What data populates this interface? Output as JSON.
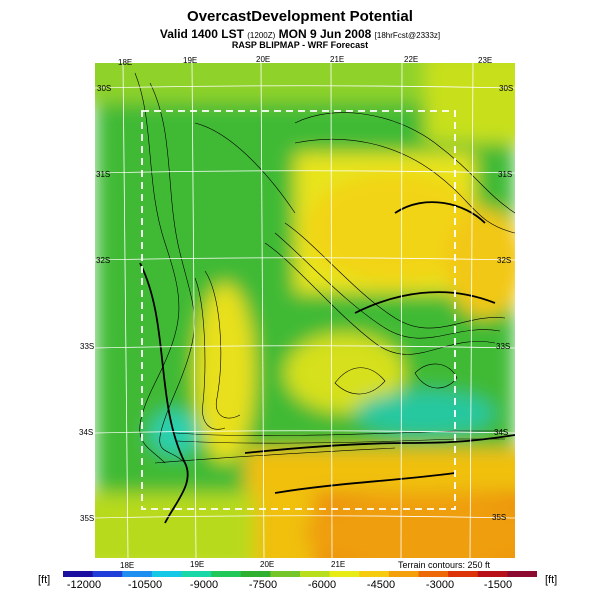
{
  "header": {
    "title": "OvercastDevelopment Potential",
    "subtitle_main": "Valid 1400 LST",
    "subtitle_code": "(1200Z)",
    "subtitle_date": "MON 9 Jun 2008",
    "subtitle_fcst": "[18hrFcst@2333z]",
    "source": "RASP BLIPMAP - WRF Forecast"
  },
  "map": {
    "lon_top": [
      "18E",
      "19E",
      "20E",
      "21E",
      "22E",
      "23E"
    ],
    "lon_bottom": [
      "18E",
      "19E",
      "20E",
      "21E"
    ],
    "lat_right": [
      "30S",
      "31S",
      "32S",
      "33S",
      "34S",
      "35S"
    ],
    "lat_left": [
      "30S",
      "31S",
      "32S",
      "33S",
      "34S",
      "35S"
    ],
    "terrain_note": "Terrain contours: 250 ft"
  },
  "colorbar": {
    "unit_left": "[ft]",
    "unit_right": "[ft]",
    "ticks": [
      "-12000",
      "-10500",
      "-9000",
      "-7500",
      "-6000",
      "-4500",
      "-3000",
      "-1500"
    ],
    "colors": [
      "#1b0fa0",
      "#1f3fd8",
      "#1e8ff0",
      "#14c8e6",
      "#18d8a8",
      "#20c85a",
      "#2fb030",
      "#74c62a",
      "#b8de1e",
      "#e8ec16",
      "#f6cc10",
      "#f4a00c",
      "#ec6808",
      "#dc3408",
      "#b81018",
      "#8c0a30"
    ]
  }
}
